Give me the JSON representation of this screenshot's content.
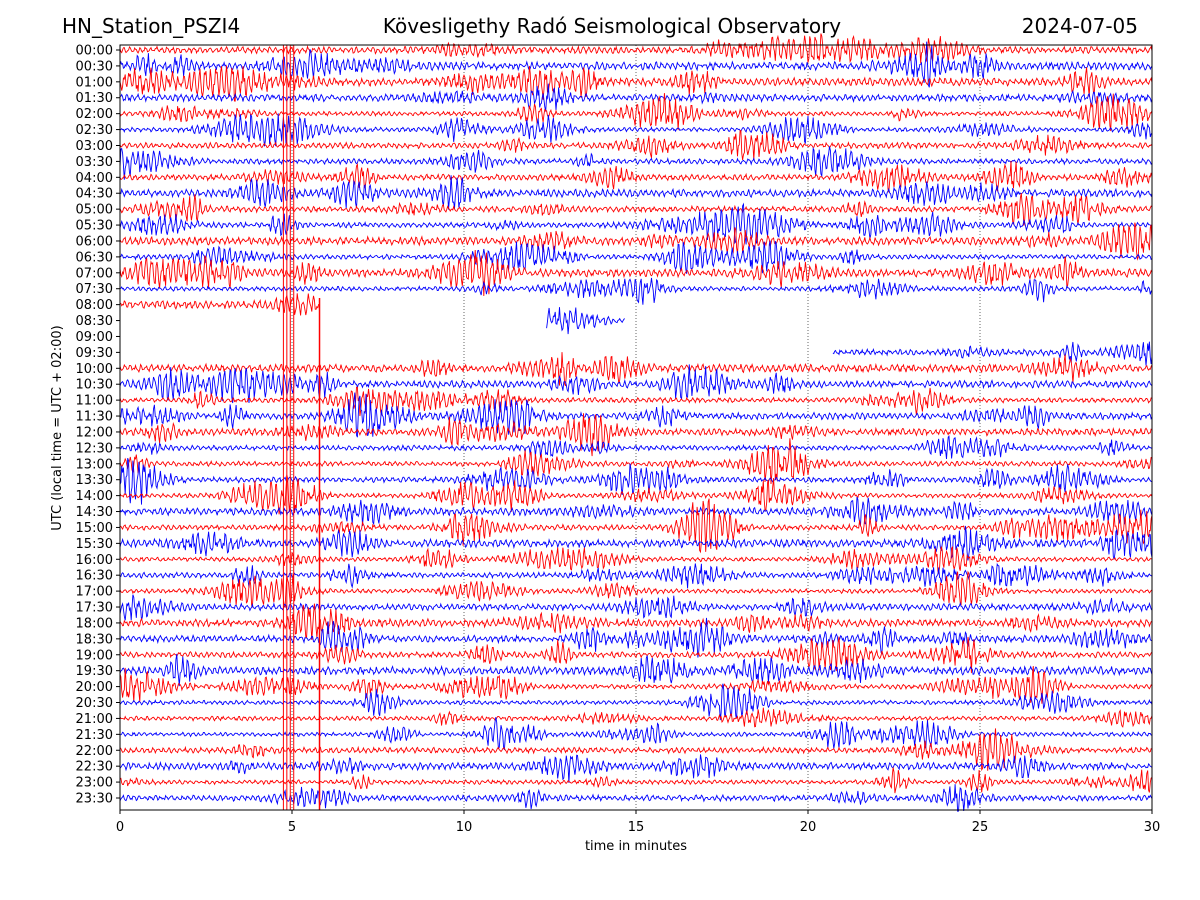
{
  "header": {
    "station": "HN_Station_PSZI4",
    "observatory": "Kövesligethy Radó Seismological Observatory",
    "date": "2024-07-05"
  },
  "chart_data": {
    "type": "line",
    "title": "Kövesligethy Radó Seismological Observatory",
    "xlabel": "time in minutes",
    "ylabel": "UTC (local time = UTC + 02:00)",
    "xlim": [
      0,
      30
    ],
    "xticks": [
      "0",
      "5",
      "10",
      "15",
      "20",
      "25",
      "30"
    ],
    "grid": "vertical dotted at 5-minute ticks",
    "line_colors": [
      "#ff0000",
      "#0000ff"
    ],
    "row_labels": [
      "00:00",
      "00:30",
      "01:00",
      "01:30",
      "02:00",
      "02:30",
      "03:00",
      "03:30",
      "04:00",
      "04:30",
      "05:00",
      "05:30",
      "06:00",
      "06:30",
      "07:00",
      "07:30",
      "08:00",
      "08:30",
      "09:00",
      "09:30",
      "10:00",
      "10:30",
      "11:00",
      "11:30",
      "12:00",
      "12:30",
      "13:00",
      "13:30",
      "14:00",
      "14:30",
      "15:00",
      "15:30",
      "16:00",
      "16:30",
      "17:00",
      "17:30",
      "18:00",
      "18:30",
      "19:00",
      "19:30",
      "20:00",
      "20:30",
      "21:00",
      "21:30",
      "22:00",
      "22:30",
      "23:00",
      "23:30"
    ],
    "data_gaps": [
      {
        "row": "08:00",
        "from_min": 5.8,
        "to_min": 30
      },
      {
        "row": "08:30",
        "from_min": 0,
        "to_min": 12.4
      },
      {
        "row": "08:30",
        "from_min": 14.7,
        "to_min": 30
      },
      {
        "row": "09:00",
        "from_min": 0,
        "to_min": 30
      },
      {
        "row": "09:30",
        "from_min": 0,
        "to_min": 20.7
      }
    ],
    "spikes_minutes": [
      4.75,
      4.85,
      4.95,
      5.05,
      5.8
    ]
  }
}
